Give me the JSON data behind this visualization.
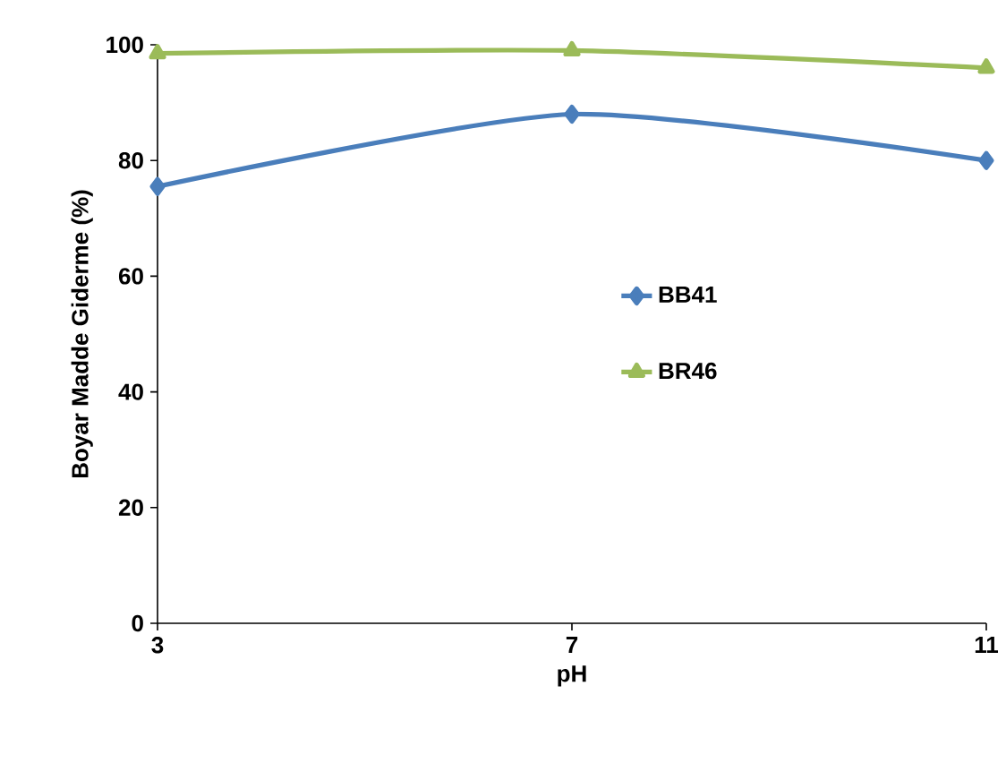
{
  "chart_data": {
    "type": "line",
    "xlabel": "pH",
    "ylabel": "Boyar Madde Giderme (%)",
    "x": [
      3,
      7,
      11
    ],
    "series": [
      {
        "name": "BB41",
        "color": "#4a7ebb",
        "marker": "diamond",
        "values": [
          75.5,
          88,
          80
        ]
      },
      {
        "name": "BR46",
        "color": "#9bbb59",
        "marker": "triangle",
        "values": [
          98.5,
          99,
          96
        ]
      }
    ],
    "xlim": [
      3,
      11
    ],
    "xticks": [
      3,
      7,
      11
    ],
    "ylim": [
      0,
      100
    ],
    "yticks": [
      0,
      20,
      40,
      60,
      80,
      100
    ],
    "grid": false,
    "legend": "right"
  }
}
